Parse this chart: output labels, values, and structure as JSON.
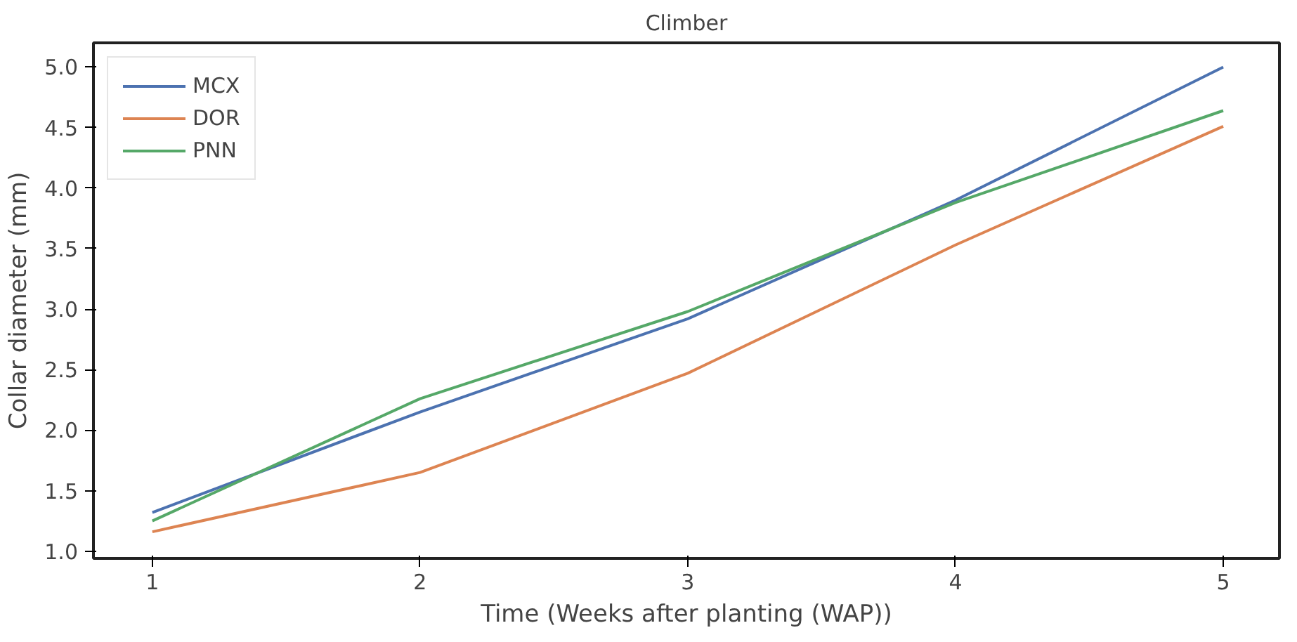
{
  "chart_data": {
    "type": "line",
    "title": "Climber",
    "xlabel": "Time (Weeks after planting (WAP))",
    "ylabel": "Collar diameter (mm)",
    "x": [
      1,
      2,
      3,
      4,
      5
    ],
    "series": [
      {
        "name": "MCX",
        "color": "#4c72b0",
        "values": [
          1.32,
          2.15,
          2.92,
          3.9,
          5.0
        ]
      },
      {
        "name": "DOR",
        "color": "#dd8452",
        "values": [
          1.16,
          1.65,
          2.47,
          3.53,
          4.51
        ]
      },
      {
        "name": "PNN",
        "color": "#55a868",
        "values": [
          1.25,
          2.26,
          2.98,
          3.88,
          4.64
        ]
      }
    ],
    "xlim": [
      0.78,
      5.21
    ],
    "ylim": [
      0.94,
      5.2
    ],
    "xticks": [
      1,
      2,
      3,
      4,
      5
    ],
    "yticks": [
      {
        "value": 1,
        "label": "1.0"
      },
      1.5,
      {
        "value": 2,
        "label": "2.0"
      },
      2.5,
      {
        "value": 3,
        "label": "3.0"
      },
      3.5,
      {
        "value": 4,
        "label": "4.0"
      },
      4.5,
      {
        "value": 5,
        "label": "5.0"
      }
    ],
    "grid": false,
    "legend": "top left"
  }
}
